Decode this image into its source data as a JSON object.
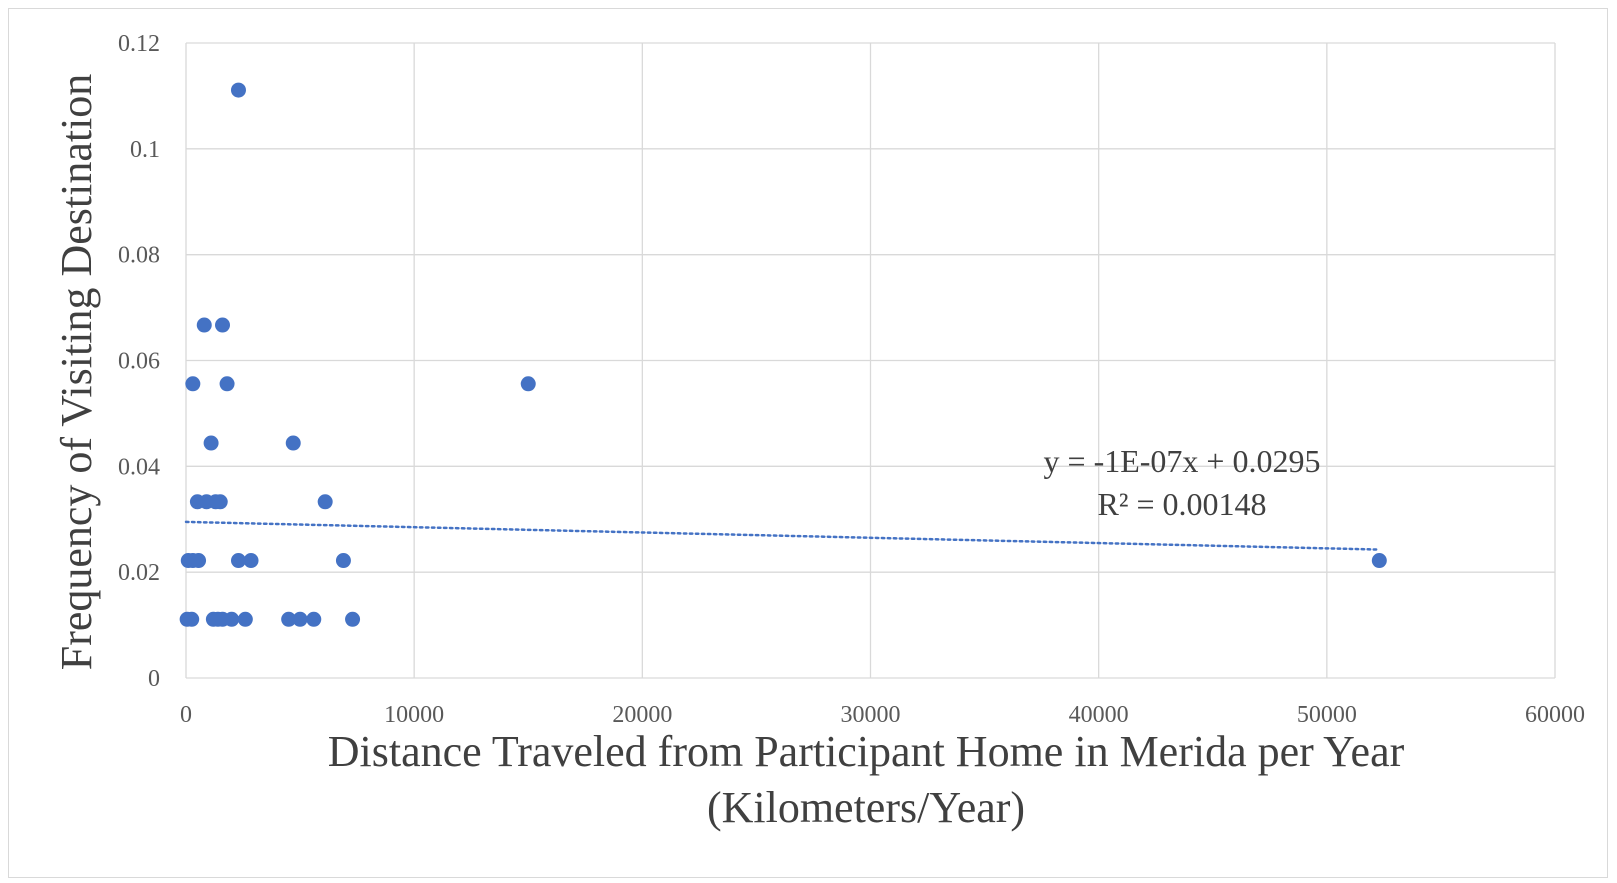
{
  "chart_data": {
    "type": "scatter",
    "title": "",
    "xlabel": [
      "Distance Traveled from Participant Home in Merida per Year",
      "(Kilometers/Year)"
    ],
    "ylabel": "Frequency of Visiting Destination",
    "xlim": [
      0,
      60000
    ],
    "ylim": [
      0,
      0.12
    ],
    "x_ticks": [
      "0",
      "10000",
      "20000",
      "30000",
      "40000",
      "50000",
      "60000"
    ],
    "y_ticks": [
      "0",
      "0.02",
      "0.04",
      "0.06",
      "0.08",
      "0.1",
      "0.12"
    ],
    "grid": true,
    "point_color": "#4472c4",
    "series": [
      {
        "points": [
          {
            "x": 2300,
            "y": 0.1111
          },
          {
            "x": 800,
            "y": 0.0667
          },
          {
            "x": 1600,
            "y": 0.0667
          },
          {
            "x": 300,
            "y": 0.0556
          },
          {
            "x": 1800,
            "y": 0.0556
          },
          {
            "x": 15000,
            "y": 0.0556
          },
          {
            "x": 1100,
            "y": 0.0444
          },
          {
            "x": 4700,
            "y": 0.0444
          },
          {
            "x": 500,
            "y": 0.0333
          },
          {
            "x": 900,
            "y": 0.0333
          },
          {
            "x": 1300,
            "y": 0.0333
          },
          {
            "x": 1500,
            "y": 0.0333
          },
          {
            "x": 6100,
            "y": 0.0333
          },
          {
            "x": 100,
            "y": 0.0222
          },
          {
            "x": 300,
            "y": 0.0222
          },
          {
            "x": 550,
            "y": 0.0222
          },
          {
            "x": 2300,
            "y": 0.0222
          },
          {
            "x": 2850,
            "y": 0.0222
          },
          {
            "x": 6900,
            "y": 0.0222
          },
          {
            "x": 52300,
            "y": 0.0222
          },
          {
            "x": 50,
            "y": 0.0111
          },
          {
            "x": 250,
            "y": 0.0111
          },
          {
            "x": 1200,
            "y": 0.0111
          },
          {
            "x": 1400,
            "y": 0.0111
          },
          {
            "x": 1600,
            "y": 0.0111
          },
          {
            "x": 2000,
            "y": 0.0111
          },
          {
            "x": 2600,
            "y": 0.0111
          },
          {
            "x": 4500,
            "y": 0.0111
          },
          {
            "x": 5000,
            "y": 0.0111
          },
          {
            "x": 5600,
            "y": 0.0111
          },
          {
            "x": 7300,
            "y": 0.0111
          }
        ]
      }
    ],
    "trendline": {
      "type": "linear",
      "slope": -1e-07,
      "intercept": 0.0295,
      "x_range": [
        0,
        52300
      ],
      "equation_text": "y = -1E-07x + 0.0295",
      "r2_text": "R² = 0.00148",
      "color": "#4472c4",
      "style": "dotted"
    }
  }
}
